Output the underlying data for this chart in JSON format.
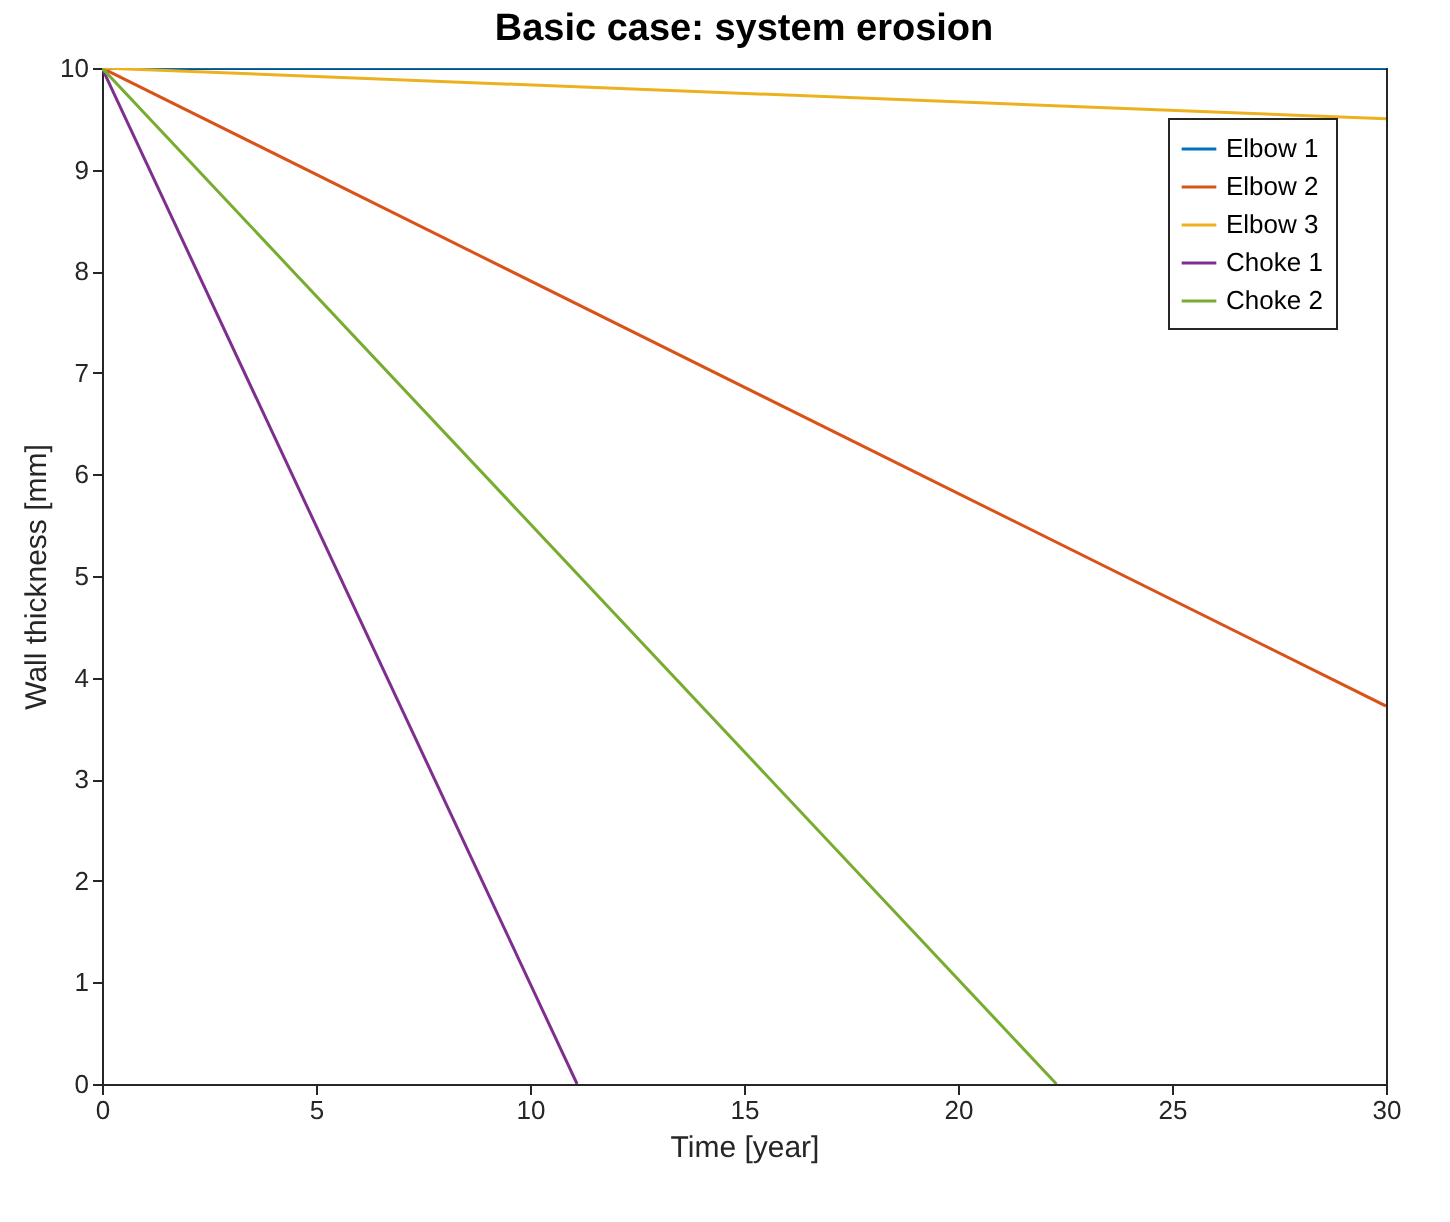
{
  "chart_data": {
    "type": "line",
    "title": "Basic case: system erosion",
    "xlabel": "Time [year]",
    "ylabel": "Wall thickness [mm]",
    "xlim": [
      0,
      30
    ],
    "xticks": [
      0,
      5,
      10,
      15,
      20,
      25,
      30
    ],
    "ylim": [
      0,
      10
    ],
    "yticks": [
      0,
      1,
      2,
      3,
      4,
      5,
      6,
      7,
      8,
      9,
      10
    ],
    "grid": false,
    "legend": "top right",
    "marker": "none",
    "line_style": "solid",
    "series": [
      {
        "name": "Elbow 1",
        "color": "#0072bd",
        "x": [
          0,
          30
        ],
        "values": [
          10,
          10
        ]
      },
      {
        "name": "Elbow 2",
        "color": "#d95319",
        "x": [
          0,
          30
        ],
        "values": [
          10,
          3.72
        ]
      },
      {
        "name": "Elbow 3",
        "color": "#edb120",
        "x": [
          0,
          30
        ],
        "values": [
          10,
          9.5
        ]
      },
      {
        "name": "Choke 1",
        "color": "#7e2f8e",
        "x": [
          0,
          11.1
        ],
        "values": [
          10,
          0
        ]
      },
      {
        "name": "Choke 2",
        "color": "#77ac30",
        "x": [
          0,
          22.3
        ],
        "values": [
          10,
          0
        ]
      }
    ]
  }
}
